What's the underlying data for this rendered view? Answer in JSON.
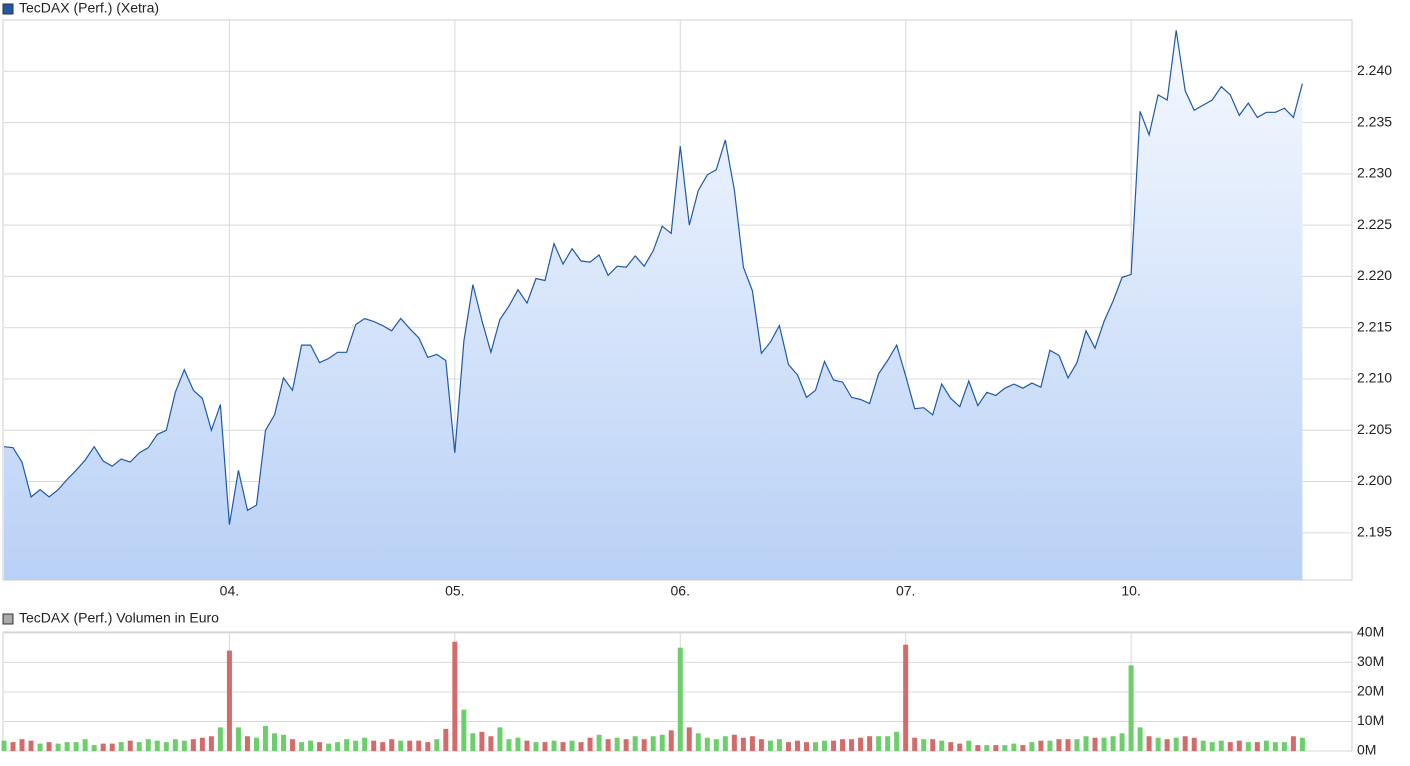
{
  "chart_data": [
    {
      "type": "area",
      "title": "TecDAX (Perf.) (Xetra)",
      "color": "#1f5aa6",
      "grid": true,
      "xlim": [
        0,
        5.98
      ],
      "xticks": [
        {
          "value": 1,
          "label": "04."
        },
        {
          "value": 2,
          "label": "05."
        },
        {
          "value": 3,
          "label": "06."
        },
        {
          "value": 4,
          "label": "07."
        },
        {
          "value": 5,
          "label": "10."
        }
      ],
      "ylim": [
        2.1904,
        2.245
      ],
      "yticks": [
        2.195,
        {
          "value": 2.2,
          "label": "2.200"
        },
        2.205,
        {
          "value": 2.21,
          "label": "2.210"
        },
        2.215,
        {
          "value": 2.22,
          "label": "2.220"
        },
        2.225,
        {
          "value": 2.23,
          "label": "2.230"
        },
        2.235,
        {
          "value": 2.24,
          "label": "2.240"
        }
      ],
      "x": [
        0,
        0.04,
        0.08,
        0.12,
        0.16,
        0.2,
        0.24,
        0.28,
        0.32,
        0.36,
        0.4,
        0.44,
        0.48,
        0.52,
        0.56,
        0.6,
        0.64,
        0.68,
        0.72,
        0.76,
        0.8,
        0.84,
        0.88,
        0.92,
        0.96,
        1,
        1.04,
        1.08,
        1.12,
        1.16,
        1.2,
        1.24,
        1.28,
        1.32,
        1.36,
        1.4,
        1.44,
        1.48,
        1.52,
        1.56,
        1.6,
        1.64,
        1.68,
        1.72,
        1.76,
        1.8,
        1.84,
        1.88,
        1.92,
        1.96,
        2,
        2.04,
        2.08,
        2.12,
        2.16,
        2.2,
        2.24,
        2.28,
        2.32,
        2.36,
        2.4,
        2.44,
        2.48,
        2.52,
        2.56,
        2.6,
        2.64,
        2.68,
        2.72,
        2.76,
        2.8,
        2.84,
        2.88,
        2.92,
        2.96,
        3,
        3.04,
        3.08,
        3.12,
        3.16,
        3.2,
        3.24,
        3.28,
        3.32,
        3.36,
        3.4,
        3.44,
        3.48,
        3.52,
        3.56,
        3.6,
        3.64,
        3.68,
        3.72,
        3.76,
        3.8,
        3.84,
        3.88,
        3.92,
        3.96,
        4,
        4.04,
        4.08,
        4.12,
        4.16,
        4.2,
        4.24,
        4.28,
        4.32,
        4.36,
        4.4,
        4.44,
        4.48,
        4.52,
        4.56,
        4.6,
        4.64,
        4.68,
        4.72,
        4.76,
        4.8,
        4.84,
        4.88,
        4.92,
        4.96,
        5,
        5.04,
        5.08,
        5.12,
        5.16,
        5.2,
        5.24,
        5.28,
        5.32,
        5.36,
        5.4,
        5.44,
        5.48,
        5.52,
        5.56,
        5.6,
        5.64,
        5.68,
        5.72,
        5.76
      ],
      "values": [
        2.2034,
        2.2033,
        2.2019,
        2.1985,
        2.1992,
        2.1985,
        2.1992,
        2.2002,
        2.2011,
        2.2021,
        2.2034,
        2.202,
        2.2015,
        2.2022,
        2.2019,
        2.2028,
        2.2033,
        2.2046,
        2.205,
        2.2087,
        2.2109,
        2.2089,
        2.2081,
        2.205,
        2.2075,
        2.1958,
        2.2011,
        2.1972,
        2.1977,
        2.205,
        2.2065,
        2.2101,
        2.2089,
        2.2133,
        2.2133,
        2.2116,
        2.212,
        2.2126,
        2.2126,
        2.2153,
        2.2159,
        2.2156,
        2.2152,
        2.2147,
        2.2159,
        2.2149,
        2.214,
        2.2121,
        2.2124,
        2.2118,
        2.2028,
        2.2137,
        2.2192,
        2.2157,
        2.2126,
        2.2158,
        2.2171,
        2.2187,
        2.2174,
        2.2198,
        2.2196,
        2.2232,
        2.2212,
        2.2227,
        2.2215,
        2.2214,
        2.2221,
        2.2201,
        2.221,
        2.2209,
        2.222,
        2.221,
        2.2225,
        2.2249,
        2.2242,
        2.2327,
        2.225,
        2.2284,
        2.2299,
        2.2304,
        2.2333,
        2.2284,
        2.2209,
        2.2186,
        2.2125,
        2.2136,
        2.2152,
        2.2114,
        2.2104,
        2.2082,
        2.2089,
        2.2117,
        2.2099,
        2.2097,
        2.2082,
        2.208,
        2.2076,
        2.2105,
        2.2118,
        2.2133,
        2.2103,
        2.2071,
        2.2072,
        2.2065,
        2.2095,
        2.2081,
        2.2073,
        2.2098,
        2.2074,
        2.2087,
        2.2084,
        2.2091,
        2.2095,
        2.2091,
        2.2096,
        2.2092,
        2.2128,
        2.2123,
        2.2101,
        2.2116,
        2.2147,
        2.213,
        2.2156,
        2.2176,
        2.2199,
        2.2202,
        2.2361,
        2.2338,
        2.2377,
        2.2372,
        2.244,
        2.2381,
        2.2362,
        2.2367,
        2.2372,
        2.2385,
        2.2377,
        2.2357,
        2.2369,
        2.2355,
        2.236,
        2.236,
        2.2364,
        2.2355,
        2.2388
      ]
    },
    {
      "type": "bar",
      "title": "TecDAX (Perf.) Volumen in Euro",
      "color": "#aaaaaa",
      "up_color": "#6ccf6c",
      "down_color": "#d46a6a",
      "grid": true,
      "xlim": [
        0,
        5.98
      ],
      "ylim": [
        0,
        40.3
      ],
      "yticks": [
        {
          "value": 0,
          "label": "0M"
        },
        {
          "value": 10,
          "label": "10M"
        },
        {
          "value": 20,
          "label": "20M"
        },
        {
          "value": 30,
          "label": "30M"
        },
        {
          "value": 40,
          "label": "40M"
        }
      ],
      "x": [
        0,
        0.04,
        0.08,
        0.12,
        0.16,
        0.2,
        0.24,
        0.28,
        0.32,
        0.36,
        0.4,
        0.44,
        0.48,
        0.52,
        0.56,
        0.6,
        0.64,
        0.68,
        0.72,
        0.76,
        0.8,
        0.84,
        0.88,
        0.92,
        0.96,
        1,
        1.04,
        1.08,
        1.12,
        1.16,
        1.2,
        1.24,
        1.28,
        1.32,
        1.36,
        1.4,
        1.44,
        1.48,
        1.52,
        1.56,
        1.6,
        1.64,
        1.68,
        1.72,
        1.76,
        1.8,
        1.84,
        1.88,
        1.92,
        1.96,
        2,
        2.04,
        2.08,
        2.12,
        2.16,
        2.2,
        2.24,
        2.28,
        2.32,
        2.36,
        2.4,
        2.44,
        2.48,
        2.52,
        2.56,
        2.6,
        2.64,
        2.68,
        2.72,
        2.76,
        2.8,
        2.84,
        2.88,
        2.92,
        2.96,
        3,
        3.04,
        3.08,
        3.12,
        3.16,
        3.2,
        3.24,
        3.28,
        3.32,
        3.36,
        3.4,
        3.44,
        3.48,
        3.52,
        3.56,
        3.6,
        3.64,
        3.68,
        3.72,
        3.76,
        3.8,
        3.84,
        3.88,
        3.92,
        3.96,
        4,
        4.04,
        4.08,
        4.12,
        4.16,
        4.2,
        4.24,
        4.28,
        4.32,
        4.36,
        4.4,
        4.44,
        4.48,
        4.52,
        4.56,
        4.6,
        4.64,
        4.68,
        4.72,
        4.76,
        4.8,
        4.84,
        4.88,
        4.92,
        4.96,
        5,
        5.04,
        5.08,
        5.12,
        5.16,
        5.2,
        5.24,
        5.28,
        5.32,
        5.36,
        5.4,
        5.44,
        5.48,
        5.52,
        5.56,
        5.6,
        5.64,
        5.68,
        5.72,
        5.76
      ],
      "values": [
        3.5,
        3,
        4,
        3.5,
        2.5,
        3,
        2.5,
        3,
        3,
        4,
        2,
        2.5,
        2.5,
        3,
        3.5,
        3,
        4,
        3.5,
        3,
        4,
        3.5,
        4,
        4.5,
        5,
        8,
        34,
        8,
        5,
        4.5,
        8.5,
        6,
        5.5,
        4,
        3,
        3.5,
        3,
        2.5,
        3,
        4,
        3.5,
        4.5,
        3.5,
        3,
        4,
        3.5,
        3.5,
        3.5,
        3,
        4,
        7.5,
        37,
        14,
        6,
        6.5,
        5,
        8,
        4,
        4.5,
        3.5,
        3,
        3,
        3.5,
        3,
        3.5,
        3,
        4.5,
        5.5,
        4,
        4.5,
        4,
        5,
        4,
        5,
        5.5,
        7,
        35,
        8,
        6,
        4.5,
        4,
        5,
        5.5,
        4.5,
        5,
        4,
        3.5,
        4,
        3,
        3.5,
        3,
        3,
        3.5,
        3.5,
        4,
        4,
        4.5,
        5,
        5,
        5,
        6.5,
        36,
        4.5,
        4,
        4,
        3.5,
        3,
        2.5,
        3.5,
        2,
        2,
        2,
        2,
        2.5,
        2,
        3,
        3.5,
        3.5,
        4,
        4,
        4,
        5,
        4.5,
        4.5,
        5,
        6,
        29,
        8,
        5,
        4.5,
        4,
        4.5,
        5,
        4.5,
        3.5,
        3,
        3.5,
        3,
        3.5,
        3,
        3,
        3.5,
        3,
        3,
        5,
        4.5
      ]
    }
  ]
}
